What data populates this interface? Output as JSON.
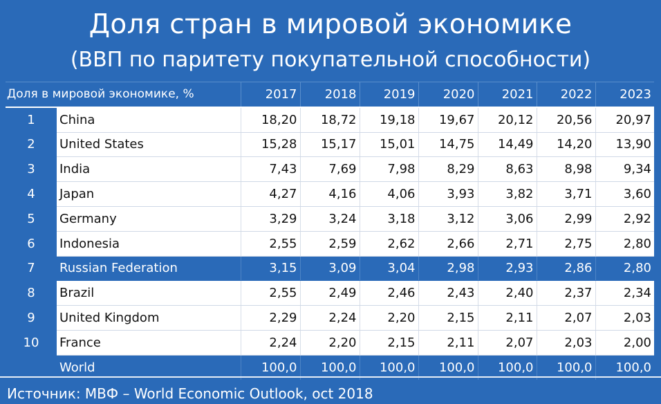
{
  "header": {
    "title": "Доля стран в мировой экономике",
    "subtitle": "(ВВП по паритету покупательной способности)"
  },
  "table": {
    "label": "Доля в мировой экономике, %",
    "years": [
      "2017",
      "2018",
      "2019",
      "2020",
      "2021",
      "2022",
      "2023"
    ],
    "rows": [
      {
        "rank": "1",
        "country": "China",
        "values": [
          "18,20",
          "18,72",
          "19,18",
          "19,67",
          "20,12",
          "20,56",
          "20,97"
        ]
      },
      {
        "rank": "2",
        "country": "United States",
        "values": [
          "15,28",
          "15,17",
          "15,01",
          "14,75",
          "14,49",
          "14,20",
          "13,90"
        ]
      },
      {
        "rank": "3",
        "country": "India",
        "values": [
          "7,43",
          "7,69",
          "7,98",
          "8,29",
          "8,63",
          "8,98",
          "9,34"
        ]
      },
      {
        "rank": "4",
        "country": "Japan",
        "values": [
          "4,27",
          "4,16",
          "4,06",
          "3,93",
          "3,82",
          "3,71",
          "3,60"
        ]
      },
      {
        "rank": "5",
        "country": "Germany",
        "values": [
          "3,29",
          "3,24",
          "3,18",
          "3,12",
          "3,06",
          "2,99",
          "2,92"
        ]
      },
      {
        "rank": "6",
        "country": "Indonesia",
        "values": [
          "2,55",
          "2,59",
          "2,62",
          "2,66",
          "2,71",
          "2,75",
          "2,80"
        ]
      },
      {
        "rank": "7",
        "country": "Russian Federation",
        "values": [
          "3,15",
          "3,09",
          "3,04",
          "2,98",
          "2,93",
          "2,86",
          "2,80"
        ],
        "highlight": true
      },
      {
        "rank": "8",
        "country": "Brazil",
        "values": [
          "2,55",
          "2,49",
          "2,46",
          "2,43",
          "2,40",
          "2,37",
          "2,34"
        ]
      },
      {
        "rank": "9",
        "country": "United Kingdom",
        "values": [
          "2,29",
          "2,24",
          "2,20",
          "2,15",
          "2,11",
          "2,07",
          "2,03"
        ]
      },
      {
        "rank": "10",
        "country": "France",
        "values": [
          "2,24",
          "2,20",
          "2,15",
          "2,11",
          "2,07",
          "2,03",
          "2,00"
        ]
      }
    ],
    "total": {
      "country": "World",
      "values": [
        "100,0",
        "100,0",
        "100,0",
        "100,0",
        "100,0",
        "100,0",
        "100,0"
      ]
    }
  },
  "footer": {
    "source": "Источник: МВФ – World Economic Outlook, oct 2018"
  },
  "colors": {
    "background": "#2a6ab8",
    "cell": "#ffffff",
    "highlight_row": "#2a6ab8"
  },
  "chart_data": {
    "type": "table",
    "title": "Доля стран в мировой экономике",
    "subtitle": "(ВВП по паритету покупательной способности)",
    "columns": [
      "2017",
      "2018",
      "2019",
      "2020",
      "2021",
      "2022",
      "2023"
    ],
    "series": [
      {
        "name": "China",
        "values": [
          18.2,
          18.72,
          19.18,
          19.67,
          20.12,
          20.56,
          20.97
        ]
      },
      {
        "name": "United States",
        "values": [
          15.28,
          15.17,
          15.01,
          14.75,
          14.49,
          14.2,
          13.9
        ]
      },
      {
        "name": "India",
        "values": [
          7.43,
          7.69,
          7.98,
          8.29,
          8.63,
          8.98,
          9.34
        ]
      },
      {
        "name": "Japan",
        "values": [
          4.27,
          4.16,
          4.06,
          3.93,
          3.82,
          3.71,
          3.6
        ]
      },
      {
        "name": "Germany",
        "values": [
          3.29,
          3.24,
          3.18,
          3.12,
          3.06,
          2.99,
          2.92
        ]
      },
      {
        "name": "Indonesia",
        "values": [
          2.55,
          2.59,
          2.62,
          2.66,
          2.71,
          2.75,
          2.8
        ]
      },
      {
        "name": "Russian Federation",
        "values": [
          3.15,
          3.09,
          3.04,
          2.98,
          2.93,
          2.86,
          2.8
        ]
      },
      {
        "name": "Brazil",
        "values": [
          2.55,
          2.49,
          2.46,
          2.43,
          2.4,
          2.37,
          2.34
        ]
      },
      {
        "name": "United Kingdom",
        "values": [
          2.29,
          2.24,
          2.2,
          2.15,
          2.11,
          2.07,
          2.03
        ]
      },
      {
        "name": "France",
        "values": [
          2.24,
          2.2,
          2.15,
          2.11,
          2.07,
          2.03,
          2.0
        ]
      },
      {
        "name": "World",
        "values": [
          100.0,
          100.0,
          100.0,
          100.0,
          100.0,
          100.0,
          100.0
        ]
      }
    ]
  }
}
